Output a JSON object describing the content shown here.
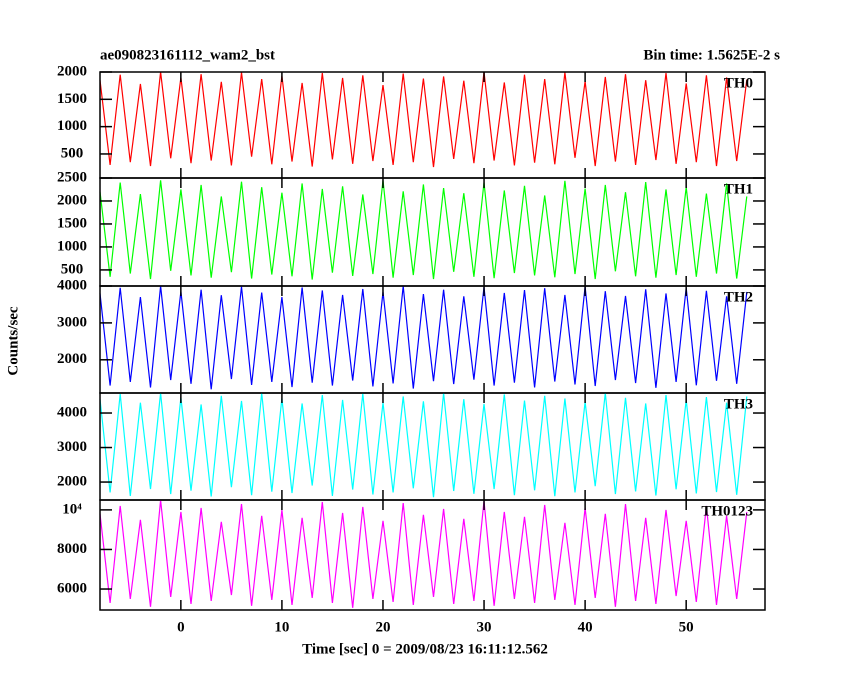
{
  "title": "ae090823161112_wam2_bst",
  "subtitle": "Bin time: 1.5625E-2 s",
  "x_label": "Time [sec] 0 = 2009/08/23 16:11:12.562",
  "y_label": "Counts/sec",
  "chart_data": [
    {
      "type": "line",
      "x": [
        -8,
        -7,
        -6,
        -5,
        -4,
        -3,
        -2,
        -1,
        0,
        1,
        2,
        3,
        4,
        5,
        6,
        7,
        8,
        9,
        10,
        11,
        12,
        13,
        14,
        15,
        16,
        17,
        18,
        19,
        20,
        21,
        22,
        23,
        24,
        25,
        26,
        27,
        28,
        29,
        30,
        31,
        32,
        33,
        34,
        35,
        36,
        37,
        38,
        39,
        40,
        41,
        42,
        43,
        44,
        45,
        46,
        47,
        48,
        49,
        50,
        51,
        52,
        53,
        54,
        55,
        56
      ],
      "series": [
        {
          "name": "TH0",
          "color": "#ff0000",
          "values": [
            1850,
            300,
            1950,
            350,
            1780,
            280,
            2000,
            420,
            1900,
            330,
            1960,
            380,
            1820,
            290,
            1990,
            450,
            1870,
            310,
            1930,
            360,
            1800,
            270,
            1980,
            400,
            1890,
            320,
            1940,
            370,
            1760,
            300,
            1970,
            350,
            1880,
            260,
            1920,
            410,
            1840,
            330,
            2000,
            380,
            1810,
            290,
            1950,
            340,
            1870,
            310,
            1990,
            430,
            1830,
            280,
            1910,
            360,
            1960,
            300,
            1850,
            390,
            1980,
            320,
            1790,
            350,
            1940,
            280,
            1900,
            370,
            1860
          ]
        }
      ],
      "xlim": [
        -8,
        57.8
      ],
      "xticks": [
        0,
        10,
        20,
        30,
        40,
        50
      ],
      "ylim": [
        60,
        2000
      ],
      "yticks": [
        500,
        1000,
        1500,
        2000
      ]
    },
    {
      "type": "line",
      "x": [
        -8,
        -7,
        -6,
        -5,
        -4,
        -3,
        -2,
        -1,
        0,
        1,
        2,
        3,
        4,
        5,
        6,
        7,
        8,
        9,
        10,
        11,
        12,
        13,
        14,
        15,
        16,
        17,
        18,
        19,
        20,
        21,
        22,
        23,
        24,
        25,
        26,
        27,
        28,
        29,
        30,
        31,
        32,
        33,
        34,
        35,
        36,
        37,
        38,
        39,
        40,
        41,
        42,
        43,
        44,
        45,
        46,
        47,
        48,
        49,
        50,
        51,
        52,
        53,
        54,
        55,
        56
      ],
      "series": [
        {
          "name": "TH1",
          "color": "#00ff00",
          "values": [
            2200,
            350,
            2400,
            420,
            2150,
            300,
            2450,
            480,
            2250,
            380,
            2350,
            330,
            2100,
            450,
            2420,
            310,
            2300,
            400,
            2180,
            360,
            2380,
            290,
            2260,
            440,
            2320,
            370,
            2140,
            410,
            2450,
            330,
            2210,
            390,
            2360,
            300,
            2280,
            460,
            2170,
            350,
            2400,
            320,
            2230,
            430,
            2330,
            380,
            2120,
            340,
            2440,
            410,
            2270,
            300,
            2350,
            470,
            2190,
            360,
            2410,
            330,
            2250,
            390,
            2300,
            350,
            2160,
            420,
            2380,
            310,
            2100
          ]
        }
      ],
      "xlim": [
        -8,
        57.8
      ],
      "xticks": [
        0,
        10,
        20,
        30,
        40,
        50
      ],
      "ylim": [
        150,
        2500
      ],
      "yticks": [
        500,
        1000,
        1500,
        2000,
        2500
      ]
    },
    {
      "type": "line",
      "x": [
        -8,
        -7,
        -6,
        -5,
        -4,
        -3,
        -2,
        -1,
        0,
        1,
        2,
        3,
        4,
        5,
        6,
        7,
        8,
        9,
        10,
        11,
        12,
        13,
        14,
        15,
        16,
        17,
        18,
        19,
        20,
        21,
        22,
        23,
        24,
        25,
        26,
        27,
        28,
        29,
        30,
        31,
        32,
        33,
        34,
        35,
        36,
        37,
        38,
        39,
        40,
        41,
        42,
        43,
        44,
        45,
        46,
        47,
        48,
        49,
        50,
        51,
        52,
        53,
        54,
        55,
        56
      ],
      "series": [
        {
          "name": "TH2",
          "color": "#0000ff",
          "values": [
            3800,
            1300,
            3950,
            1400,
            3700,
            1250,
            4000,
            1450,
            3850,
            1350,
            3900,
            1200,
            3750,
            1480,
            3980,
            1320,
            3820,
            1400,
            3700,
            1260,
            3960,
            1380,
            3880,
            1300,
            3760,
            1440,
            3920,
            1280,
            3840,
            1360,
            4000,
            1220,
            3780,
            1420,
            3900,
            1340,
            3720,
            1460,
            3970,
            1300,
            3810,
            1380,
            3890,
            1250,
            3940,
            1410,
            3760,
            1330,
            3990,
            1290,
            3860,
            1450,
            3730,
            1370,
            3910,
            1240,
            3800,
            1400,
            3950,
            1310,
            3870,
            1430,
            3720,
            1350,
            3840
          ]
        }
      ],
      "xlim": [
        -8,
        57.8
      ],
      "xticks": [
        0,
        10,
        20,
        30,
        40,
        50
      ],
      "ylim": [
        1100,
        4000
      ],
      "yticks": [
        2000,
        3000,
        4000
      ]
    },
    {
      "type": "line",
      "x": [
        -8,
        -7,
        -6,
        -5,
        -4,
        -3,
        -2,
        -1,
        0,
        1,
        2,
        3,
        4,
        5,
        6,
        7,
        8,
        9,
        10,
        11,
        12,
        13,
        14,
        15,
        16,
        17,
        18,
        19,
        20,
        21,
        22,
        23,
        24,
        25,
        26,
        27,
        28,
        29,
        30,
        31,
        32,
        33,
        34,
        35,
        36,
        37,
        38,
        39,
        40,
        41,
        42,
        43,
        44,
        45,
        46,
        47,
        48,
        49,
        50,
        51,
        52,
        53,
        54,
        55,
        56
      ],
      "series": [
        {
          "name": "TH3",
          "color": "#00ffff",
          "values": [
            4400,
            1700,
            4550,
            1600,
            4300,
            1800,
            4580,
            1650,
            4450,
            1750,
            4250,
            1580,
            4500,
            1850,
            4350,
            1620,
            4580,
            1720,
            4420,
            1680,
            4280,
            1900,
            4520,
            1600,
            4380,
            1780,
            4560,
            1640,
            4300,
            1700,
            4480,
            1820,
            4340,
            1560,
            4580,
            1740,
            4400,
            1660,
            4260,
            1800,
            4540,
            1620,
            4360,
            1760,
            4500,
            1590,
            4420,
            1700,
            4320,
            1880,
            4580,
            1650,
            4440,
            1730,
            4280,
            1610,
            4520,
            1790,
            4380,
            1670,
            4460,
            1710,
            4300,
            1630,
            4480
          ]
        }
      ],
      "xlim": [
        -8,
        57.8
      ],
      "xticks": [
        0,
        10,
        20,
        30,
        40,
        50
      ],
      "ylim": [
        1480,
        4580
      ],
      "yticks": [
        2000,
        3000,
        4000
      ]
    },
    {
      "type": "line",
      "x": [
        -8,
        -7,
        -6,
        -5,
        -4,
        -3,
        -2,
        -1,
        0,
        1,
        2,
        3,
        4,
        5,
        6,
        7,
        8,
        9,
        10,
        11,
        12,
        13,
        14,
        15,
        16,
        17,
        18,
        19,
        20,
        21,
        22,
        23,
        24,
        25,
        26,
        27,
        28,
        29,
        30,
        31,
        32,
        33,
        34,
        35,
        36,
        37,
        38,
        39,
        40,
        41,
        42,
        43,
        44,
        45,
        46,
        47,
        48,
        49,
        50,
        51,
        52,
        53,
        54,
        55,
        56
      ],
      "series": [
        {
          "name": "TH0123",
          "color": "#ff00ff",
          "values": [
            9800,
            5300,
            10200,
            5500,
            9500,
            5100,
            10500,
            5600,
            9900,
            5250,
            10100,
            5400,
            9400,
            5700,
            10300,
            5150,
            9700,
            5450,
            10000,
            5200,
            9600,
            5550,
            10400,
            5300,
            9850,
            5050,
            10150,
            5500,
            9450,
            5350,
            10350,
            5200,
            9750,
            5600,
            10050,
            5250,
            9550,
            5400,
            10450,
            5150,
            9900,
            5500,
            9650,
            5300,
            10250,
            5450,
            9350,
            5200,
            10100,
            5550,
            9800,
            5100,
            10300,
            5400,
            9600,
            5250,
            10000,
            5650,
            9450,
            5350,
            10200,
            5200,
            9700,
            5500,
            9900
          ]
        }
      ],
      "xlim": [
        -8,
        57.8
      ],
      "xticks": [
        0,
        10,
        20,
        30,
        40,
        50
      ],
      "ylim": [
        4940,
        10500
      ],
      "yticks": [
        6000,
        8000,
        {
          "value": 10000,
          "label": "10⁴"
        }
      ],
      "xtick_labels": true
    }
  ]
}
